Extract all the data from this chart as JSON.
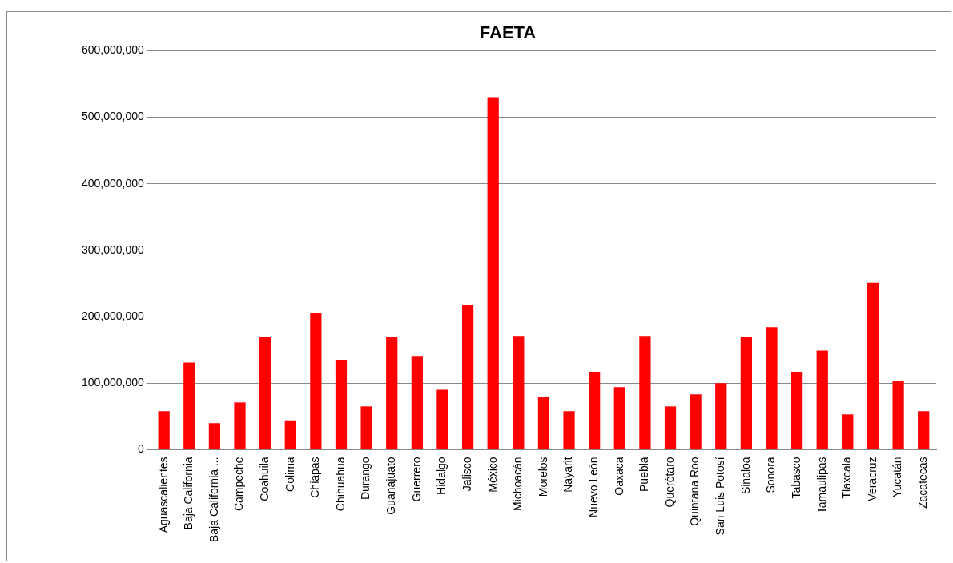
{
  "chart_data": {
    "type": "bar",
    "title": "FAETA",
    "categories": [
      "Aguascalientes",
      "Baja California",
      "Baja California ...",
      "Campeche",
      "Coahuila",
      "Colima",
      "Chiapas",
      "Chihuahua",
      "Durango",
      "Guanajuato",
      "Guerrero",
      "Hidalgo",
      "Jalisco",
      "México",
      "Michoacán",
      "Morelos",
      "Nayarit",
      "Nuevo León",
      "Oaxaca",
      "Puebla",
      "Querétaro",
      "Quintana Roo",
      "San Luis Potosí",
      "Sinaloa",
      "Sonora",
      "Tabasco",
      "Tamaulipas",
      "Tlaxcala",
      "Veracruz",
      "Yucatán",
      "Zacatecas"
    ],
    "values": [
      58000000,
      131000000,
      40000000,
      71000000,
      170000000,
      44000000,
      206000000,
      135000000,
      65000000,
      170000000,
      141000000,
      90000000,
      217000000,
      530000000,
      171000000,
      79000000,
      58000000,
      117000000,
      94000000,
      171000000,
      65000000,
      83000000,
      100000000,
      170000000,
      184000000,
      117000000,
      149000000,
      53000000,
      251000000,
      103000000,
      58000000
    ],
    "color": "#ff0000",
    "ylim": [
      0,
      600000000
    ],
    "yticks": [
      0,
      {
        "value": 100000000,
        "label": "100,000,000"
      },
      {
        "value": 200000000,
        "label": "200,000,000"
      },
      {
        "value": 300000000,
        "label": "300,000,000"
      },
      {
        "value": 400000000,
        "label": "400,000,000"
      },
      {
        "value": 500000000,
        "label": "500,000,000"
      },
      {
        "value": 600000000,
        "label": "600,000,000"
      }
    ],
    "grid": "y",
    "legend": false
  }
}
